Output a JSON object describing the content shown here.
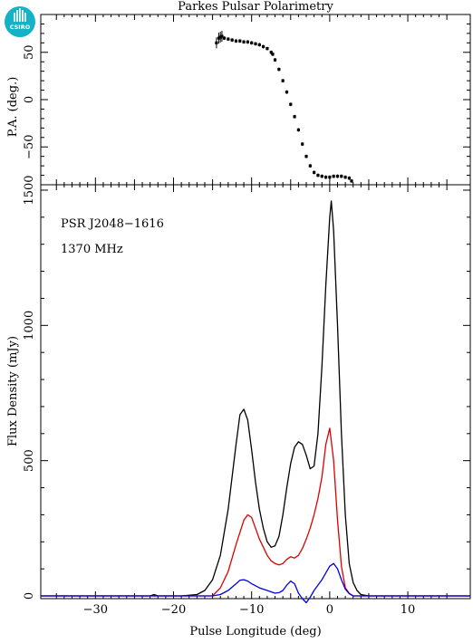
{
  "logo": {
    "text": "CSIRO"
  },
  "chart_data": [
    {
      "type": "scatter",
      "title": "Parkes Pulsar Polarimetry",
      "ylabel": "P.A. (deg.)",
      "xlim": [
        -37,
        18
      ],
      "ylim": [
        -90,
        90
      ],
      "yticks": [
        -50,
        0,
        50
      ],
      "series": [
        {
          "color": "#000000",
          "x": [
            -14.5,
            -14.2,
            -14,
            -13.8,
            -13.5,
            -13,
            -12.5,
            -12,
            -11.5,
            -11,
            -10.5,
            -10,
            -9.5,
            -9,
            -8.5,
            -8,
            -7.5,
            -7.3,
            -7,
            -6.5,
            -6,
            -5.5,
            -5,
            -4.5,
            -4,
            -3.5,
            -3,
            -2.5,
            -2,
            -1.5,
            -1,
            -0.5,
            0,
            0.5,
            1,
            1.5,
            2,
            2.5,
            2.8
          ],
          "y": [
            60,
            65,
            66,
            67,
            65,
            64,
            63,
            62,
            62,
            61,
            61,
            60,
            59,
            58,
            56,
            54,
            50,
            48,
            42,
            32,
            20,
            8,
            -5,
            -18,
            -32,
            -47,
            -60,
            -70,
            -77,
            -80,
            -81,
            -82,
            -82,
            -81,
            -81,
            -81,
            -82,
            -83,
            -86
          ]
        }
      ]
    },
    {
      "type": "line",
      "xlabel": "Pulse Longitude (deg)",
      "ylabel": "Flux Density (mJy)",
      "xlim": [
        -37,
        18
      ],
      "ylim": [
        -10,
        1520
      ],
      "xticks": [
        -30,
        -20,
        -10,
        0,
        10
      ],
      "yticks": [
        0,
        500,
        1000,
        1500
      ],
      "annotations": [
        "PSR J2048−1616",
        "1370 MHz"
      ],
      "series": [
        {
          "color": "#000000",
          "x": [
            -37,
            -23,
            -22.5,
            -22,
            -19,
            -17,
            -16,
            -15,
            -14,
            -13,
            -12,
            -11.5,
            -11,
            -10.5,
            -10,
            -9.5,
            -9,
            -8.5,
            -8,
            -7.5,
            -7,
            -6.5,
            -6,
            -5.5,
            -5,
            -4.5,
            -4,
            -3.5,
            -3,
            -2.5,
            -2,
            -1.5,
            -1,
            -0.5,
            0,
            0.2,
            0.5,
            1,
            1.5,
            2,
            2.5,
            3,
            3.5,
            4,
            5,
            18
          ],
          "y": [
            0,
            0,
            5,
            0,
            0,
            5,
            20,
            60,
            150,
            320,
            560,
            670,
            690,
            650,
            540,
            420,
            320,
            250,
            200,
            180,
            185,
            220,
            300,
            400,
            490,
            550,
            570,
            560,
            520,
            470,
            480,
            600,
            850,
            1150,
            1400,
            1460,
            1350,
            1000,
            600,
            300,
            120,
            50,
            20,
            5,
            0,
            0
          ]
        },
        {
          "color": "#dd0000",
          "x": [
            -37,
            -15,
            -14,
            -13,
            -12,
            -11,
            -10.5,
            -10,
            -9.5,
            -9,
            -8.5,
            -8,
            -7.5,
            -7,
            -6.5,
            -6,
            -5.5,
            -5,
            -4.5,
            -4,
            -3.5,
            -3,
            -2.5,
            -2,
            -1.5,
            -1,
            -0.5,
            0,
            0.5,
            1,
            1.5,
            2,
            2.5,
            3,
            18
          ],
          "y": [
            0,
            0,
            30,
            90,
            190,
            280,
            300,
            290,
            250,
            210,
            180,
            150,
            130,
            120,
            115,
            120,
            135,
            145,
            140,
            150,
            175,
            210,
            250,
            300,
            360,
            440,
            560,
            620,
            500,
            280,
            110,
            30,
            10,
            0,
            0
          ]
        },
        {
          "color": "#0000dd",
          "x": [
            -37,
            -15,
            -14,
            -13,
            -12,
            -11.5,
            -11,
            -10.5,
            -10,
            -9,
            -8,
            -7,
            -6.5,
            -6,
            -5.5,
            -5,
            -4.5,
            -4,
            -3.5,
            -3,
            -2.5,
            -2,
            -1.5,
            -1,
            -0.5,
            0,
            0.5,
            1,
            1.5,
            2,
            2.5,
            3,
            18
          ],
          "y": [
            0,
            0,
            5,
            20,
            45,
            58,
            60,
            55,
            45,
            30,
            20,
            10,
            12,
            20,
            40,
            55,
            45,
            10,
            -10,
            -25,
            -5,
            20,
            40,
            60,
            85,
            110,
            120,
            100,
            60,
            25,
            8,
            0,
            0
          ]
        }
      ]
    }
  ]
}
